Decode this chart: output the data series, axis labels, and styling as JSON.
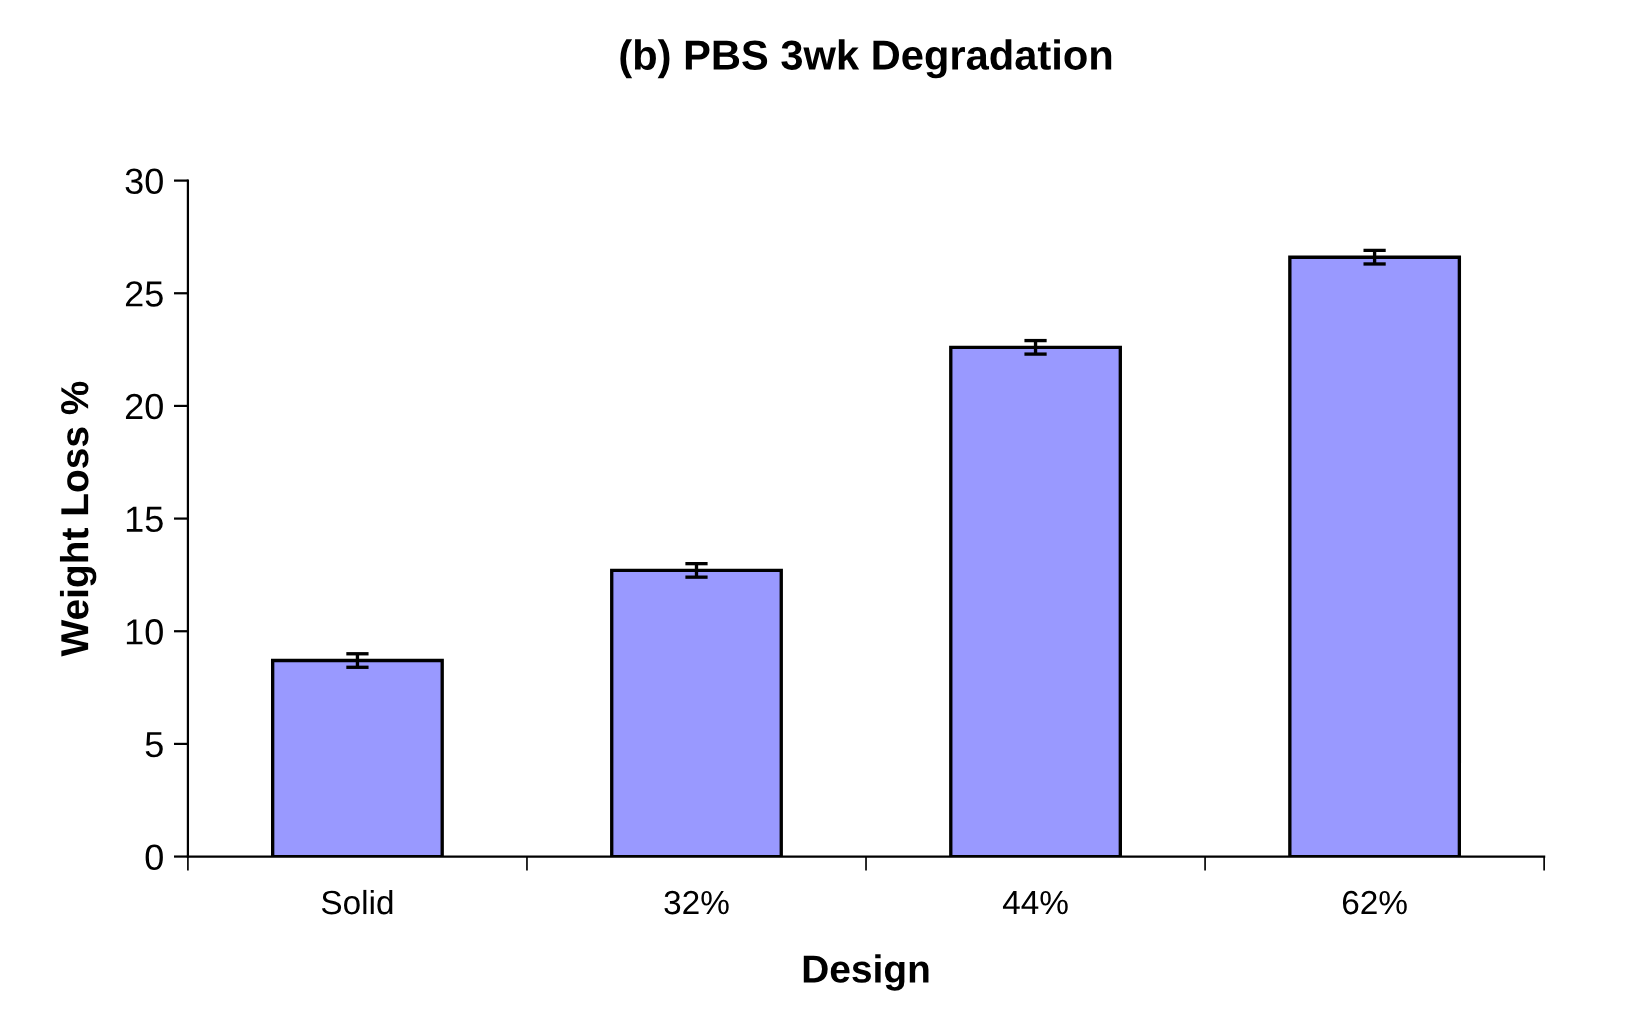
{
  "chart_data": {
    "type": "bar",
    "title": "(b) PBS 3wk Degradation",
    "xlabel": "Design",
    "ylabel": "Weight Loss %",
    "categories": [
      "Solid",
      "32%",
      "44%",
      "62%"
    ],
    "values": [
      8.7,
      12.7,
      22.6,
      26.6
    ],
    "errors": [
      0.3,
      0.3,
      0.3,
      0.3
    ],
    "color": "#9999ff",
    "ylim": [
      0,
      30
    ],
    "yticks": [
      0,
      5,
      10,
      15,
      20,
      25,
      30
    ],
    "grid": false,
    "legend": false
  }
}
